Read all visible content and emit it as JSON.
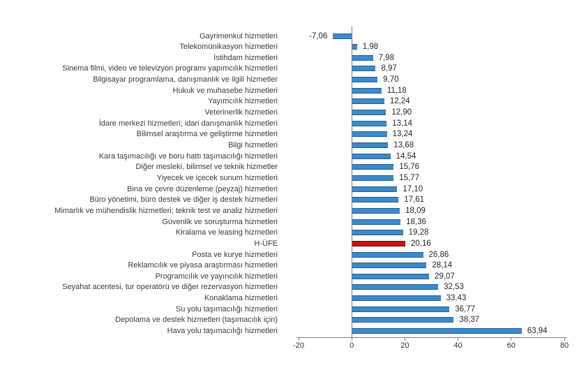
{
  "chart_data": {
    "type": "bar",
    "orientation": "horizontal",
    "categories": [
      "Gayrimenkul hizmetleri",
      "Telekomünikasyon hizmetleri",
      "İstihdam hizmetleri",
      "Sinema filmi, video ve televizyon programı yapımcılık hizmetleri",
      "Bilgisayar programlama, danışmanlık ve ilgili hizmetler",
      "Hukuk ve muhasebe hizmetleri",
      "Yayımcılık hizmetleri",
      "Veterinerlik hizmetleri",
      "İdare merkezi hizmetleri; idari danışmanlık hizmetleri",
      "Bilimsel araştırma ve geliştirme hizmetleri",
      "Bilgi hizmetleri",
      "Kara taşımacılığı ve boru hattı taşımacılığı hizmetleri",
      "Diğer mesleki, bilimsel ve teknik hizmetler",
      "Yiyecek ve içecek sunum hizmetleri",
      "Bina ve çevre düzenleme (peyzaj) hizmetleri",
      "Büro yönetimi, büro destek ve diğer iş destek hizmetleri",
      "Mimarlık ve mühendislik hizmetleri; teknik test ve analiz hizmetleri",
      "Güvenlik ve soruşturma hizmetleri",
      "Kiralama ve leasing hizmetleri",
      "H-ÜFE",
      "Posta ve kurye hizmetleri",
      "Reklamcılık ve piyasa araştırması hizmetleri",
      "Programcılık ve yayıncılık hizmetleri",
      "Seyahat acentesi, tur operatörü ve diğer rezervasyon hizmetleri",
      "Konaklama hizmetleri",
      "Su yolu taşımacılığı hizmetleri",
      "Depolama ve destek hizmetleri (taşımacılık için)",
      "Hava yolu taşımacılığı hizmetleri"
    ],
    "values": [
      -7.06,
      1.98,
      7.98,
      8.97,
      9.7,
      11.18,
      12.24,
      12.9,
      13.14,
      13.24,
      13.68,
      14.54,
      15.76,
      15.77,
      17.1,
      17.61,
      18.09,
      18.36,
      19.28,
      20.16,
      26.86,
      28.14,
      29.07,
      32.53,
      33.43,
      36.77,
      38.37,
      63.94
    ],
    "value_labels": [
      "-7,06",
      "1,98",
      "7,98",
      "8,97",
      "9,70",
      "11,18",
      "12,24",
      "12,90",
      "13,14",
      "13,24",
      "13,68",
      "14,54",
      "15,76",
      "15,77",
      "17,10",
      "17,61",
      "18,09",
      "18,36",
      "19,28",
      "20,16",
      "26,86",
      "28,14",
      "29,07",
      "32,53",
      "33,43",
      "36,77",
      "38,37",
      "63,94"
    ],
    "highlight_index": 19,
    "highlight_category": "H-ÜFE",
    "series_color": "#3D89C9",
    "series_color_dark": "#205E92",
    "highlight_color": "#C01515",
    "highlight_color_dark": "#7F0000",
    "axis_color": "#808080",
    "xlim": [
      -20,
      80
    ],
    "x_ticks": [
      -20,
      0,
      20,
      40,
      60,
      80
    ],
    "x_tick_labels": [
      "-20",
      "0",
      "20",
      "40",
      "60",
      "80"
    ],
    "grid": false,
    "legend": "none"
  }
}
